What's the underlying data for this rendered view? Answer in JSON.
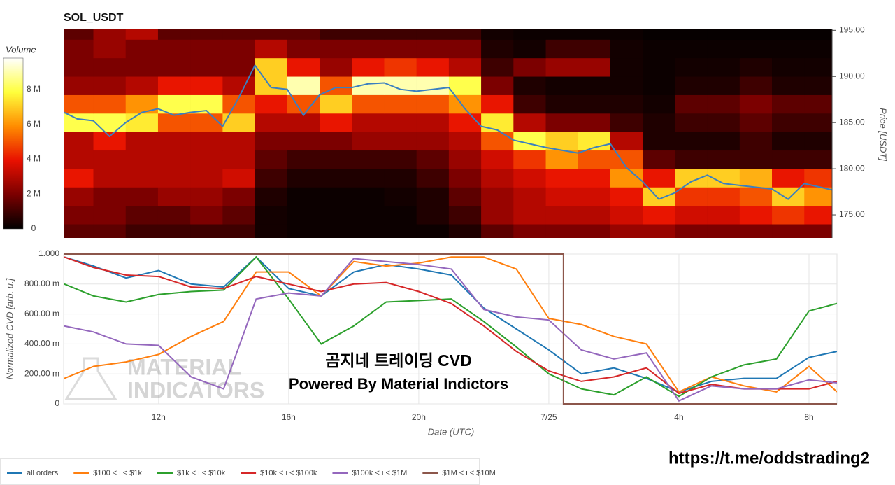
{
  "chart_data": [
    {
      "type": "heatmap",
      "title": "SOL_USDT",
      "y_label": "Price [USDT]",
      "xlim": [
        9.08,
        32.86
      ],
      "ylim": [
        172.5,
        195.1
      ],
      "yticks": [
        {
          "value": 175,
          "label": "175.00"
        },
        {
          "value": 180,
          "label": "180.00"
        },
        {
          "value": 185,
          "label": "185.00"
        },
        {
          "value": 190,
          "label": "190.00"
        },
        {
          "value": 195,
          "label": "195.00"
        }
      ],
      "xbins": [
        9,
        10,
        11,
        12,
        13,
        14,
        15,
        16,
        17,
        18,
        19,
        20,
        21,
        22,
        23,
        24,
        25,
        26,
        27,
        28,
        29,
        30,
        31,
        32,
        33
      ],
      "ybins": [
        172,
        174,
        176,
        178,
        180,
        182,
        184,
        186,
        188,
        190,
        192,
        194,
        196
      ],
      "z": [
        [
          1500000,
          1500000,
          1000000,
          1000000,
          1000000,
          1000000,
          300000,
          200000,
          200000,
          200000,
          200000,
          200000,
          500000,
          1500000,
          2000000,
          2000000,
          2000000,
          2500000,
          2500000,
          2000000,
          2000000,
          2000000,
          2000000,
          2000000
        ],
        [
          2000000,
          2000000,
          1500000,
          1500000,
          2000000,
          1500000,
          300000,
          200000,
          200000,
          200000,
          200000,
          500000,
          1000000,
          2500000,
          3000000,
          3000000,
          3000000,
          3500000,
          4000000,
          3500000,
          3500000,
          4000000,
          4500000,
          4000000
        ],
        [
          2500000,
          2000000,
          2000000,
          2500000,
          2500000,
          2000000,
          500000,
          200000,
          200000,
          200000,
          300000,
          500000,
          1500000,
          2500000,
          3000000,
          3500000,
          3500000,
          4000000,
          7000000,
          4500000,
          4500000,
          5000000,
          7000000,
          6000000
        ],
        [
          4000000,
          3000000,
          3000000,
          3000000,
          3000000,
          3500000,
          1000000,
          500000,
          500000,
          500000,
          500000,
          1000000,
          2000000,
          3000000,
          3500000,
          4000000,
          4000000,
          6000000,
          4000000,
          7000000,
          7000000,
          6500000,
          4000000,
          4500000
        ],
        [
          3000000,
          3000000,
          3000000,
          3000000,
          3000000,
          3000000,
          1500000,
          1000000,
          1000000,
          1000000,
          1000000,
          1500000,
          2500000,
          3500000,
          4500000,
          6000000,
          5000000,
          5000000,
          1500000,
          1000000,
          1000000,
          1000000,
          1000000,
          1000000
        ],
        [
          3000000,
          4000000,
          3000000,
          3000000,
          3000000,
          3000000,
          2000000,
          2000000,
          2000000,
          2500000,
          2500000,
          2500000,
          3000000,
          5000000,
          8000000,
          7000000,
          7500000,
          3000000,
          500000,
          500000,
          500000,
          1000000,
          500000,
          500000
        ],
        [
          8000000,
          8000000,
          7500000,
          5000000,
          5000000,
          7000000,
          3000000,
          3000000,
          4000000,
          3000000,
          3000000,
          3000000,
          4000000,
          7500000,
          3000000,
          2000000,
          2000000,
          1000000,
          500000,
          1000000,
          1000000,
          1500000,
          1000000,
          1000000
        ],
        [
          5000000,
          5000000,
          6000000,
          8000000,
          8000000,
          5000000,
          4000000,
          5000000,
          7000000,
          5000000,
          5000000,
          5000000,
          6000000,
          4000000,
          1000000,
          500000,
          500000,
          500000,
          300000,
          1500000,
          1500000,
          2000000,
          1500000,
          1500000
        ],
        [
          2500000,
          2500000,
          3000000,
          4000000,
          4000000,
          3000000,
          7000000,
          9000000,
          5000000,
          9000000,
          9000000,
          9000000,
          8000000,
          2000000,
          500000,
          300000,
          300000,
          300000,
          200000,
          500000,
          500000,
          1000000,
          500000,
          500000
        ],
        [
          2000000,
          2000000,
          2000000,
          2000000,
          2000000,
          2000000,
          7000000,
          4000000,
          2500000,
          4000000,
          4500000,
          4000000,
          3000000,
          1000000,
          2000000,
          2500000,
          2500000,
          300000,
          200000,
          300000,
          300000,
          500000,
          300000,
          300000
        ],
        [
          2000000,
          2500000,
          2000000,
          2000000,
          2000000,
          2000000,
          3000000,
          2000000,
          2000000,
          2000000,
          2000000,
          2000000,
          2000000,
          500000,
          300000,
          1000000,
          1000000,
          300000,
          200000,
          200000,
          200000,
          200000,
          200000,
          200000
        ],
        [
          1500000,
          2500000,
          3000000,
          1500000,
          1500000,
          1500000,
          1500000,
          1500000,
          1000000,
          1000000,
          1000000,
          1000000,
          1000000,
          300000,
          200000,
          200000,
          200000,
          200000,
          100000,
          100000,
          100000,
          100000,
          100000,
          100000
        ]
      ],
      "colorbar": {
        "title": "Volume",
        "lim": [
          0,
          9800000
        ],
        "ticks": [
          0,
          {
            "value": 2000000,
            "label": "2 M"
          },
          {
            "value": 4000000,
            "label": "4 M"
          },
          {
            "value": 6000000,
            "label": "6 M"
          },
          {
            "value": 8000000,
            "label": "8 M"
          }
        ],
        "colors": [
          "#000000",
          "#7a0000",
          "#e81000",
          "#ff8c00",
          "#ffff3c",
          "#ffffff"
        ]
      },
      "series": [
        {
          "type": "line",
          "color": "#3a7fc0",
          "x": [
            9.1,
            9.5,
            10,
            10.5,
            11,
            11.5,
            12,
            12.5,
            13,
            13.5,
            14,
            14.5,
            15,
            15.5,
            16,
            16.5,
            17,
            17.5,
            18,
            18.5,
            19,
            19.5,
            20,
            20.5,
            21,
            21.5,
            22,
            22.5,
            23,
            23.5,
            24,
            24.5,
            25,
            25.5,
            26,
            26.5,
            27,
            27.5,
            28,
            28.5,
            29,
            29.5,
            30,
            30.5,
            31,
            31.5,
            32,
            32.5,
            32.86
          ],
          "values": [
            186.1,
            185.4,
            185.2,
            183.5,
            185.0,
            186.1,
            186.5,
            185.8,
            186.1,
            186.3,
            184.6,
            187.7,
            191.2,
            188.8,
            188.6,
            185.8,
            188.0,
            188.8,
            188.8,
            189.2,
            189.3,
            188.6,
            188.4,
            188.6,
            188.8,
            186.5,
            184.6,
            184.2,
            183.1,
            182.7,
            182.3,
            182.0,
            181.7,
            182.3,
            182.7,
            180.1,
            178.6,
            176.7,
            177.4,
            178.6,
            179.3,
            178.4,
            178.2,
            178.0,
            177.8,
            176.7,
            178.4,
            178.0,
            177.7
          ]
        }
      ]
    },
    {
      "type": "line",
      "y_label": "Normalized CVD [arb. u.]",
      "x_label": "Date (UTC)",
      "xlim": [
        9.08,
        32.86
      ],
      "ylim": [
        0,
        1
      ],
      "xticks": [
        {
          "value": 12,
          "label": "12h"
        },
        {
          "value": 16,
          "label": "16h"
        },
        {
          "value": 20,
          "label": "20h"
        },
        {
          "value": 24,
          "label": "7/25"
        },
        {
          "value": 28,
          "label": "4h"
        },
        {
          "value": 32,
          "label": "8h"
        }
      ],
      "yticks": [
        0,
        {
          "value": 0.2,
          "label": "200.00 m"
        },
        {
          "value": 0.4,
          "label": "400.00 m"
        },
        {
          "value": 0.6,
          "label": "600.00 m"
        },
        {
          "value": 0.8,
          "label": "800.00 m"
        },
        {
          "value": 1,
          "label": "1.000"
        }
      ],
      "grid": true,
      "legend": "bottom-left",
      "x": [
        9.1,
        10,
        11,
        12,
        13,
        14,
        15,
        16,
        17,
        18,
        19,
        20,
        21,
        22,
        23,
        24,
        25,
        26,
        27,
        28,
        29,
        30,
        31,
        32,
        32.86
      ],
      "series": [
        {
          "name": "all orders",
          "color": "#1f77b4",
          "values": [
            0.98,
            0.92,
            0.84,
            0.89,
            0.8,
            0.78,
            0.98,
            0.77,
            0.72,
            0.88,
            0.93,
            0.9,
            0.86,
            0.64,
            0.5,
            0.36,
            0.2,
            0.24,
            0.17,
            0.08,
            0.15,
            0.17,
            0.17,
            0.31,
            0.35
          ]
        },
        {
          "name": "$100 < i < $1k",
          "color": "#ff7f0e",
          "values": [
            0.17,
            0.25,
            0.28,
            0.33,
            0.45,
            0.55,
            0.88,
            0.88,
            0.72,
            0.95,
            0.92,
            0.94,
            0.98,
            0.98,
            0.9,
            0.57,
            0.53,
            0.45,
            0.4,
            0.08,
            0.18,
            0.12,
            0.08,
            0.25,
            0.08
          ]
        },
        {
          "name": "$1k < i < $10k",
          "color": "#2ca02c",
          "values": [
            0.8,
            0.72,
            0.68,
            0.73,
            0.75,
            0.76,
            0.98,
            0.7,
            0.4,
            0.52,
            0.68,
            0.69,
            0.7,
            0.55,
            0.38,
            0.2,
            0.1,
            0.06,
            0.18,
            0.05,
            0.18,
            0.26,
            0.3,
            0.62,
            0.67
          ]
        },
        {
          "name": "$10k < i < $100k",
          "color": "#d62728",
          "values": [
            0.98,
            0.91,
            0.86,
            0.85,
            0.78,
            0.77,
            0.85,
            0.8,
            0.75,
            0.8,
            0.81,
            0.75,
            0.67,
            0.52,
            0.35,
            0.22,
            0.15,
            0.18,
            0.24,
            0.07,
            0.13,
            0.1,
            0.1,
            0.1,
            0.15
          ]
        },
        {
          "name": "$100k < i < $1M",
          "color": "#9467bd",
          "values": [
            0.52,
            0.48,
            0.4,
            0.39,
            0.18,
            0.1,
            0.7,
            0.74,
            0.72,
            0.97,
            0.95,
            0.93,
            0.9,
            0.63,
            0.58,
            0.56,
            0.36,
            0.3,
            0.34,
            0.02,
            0.12,
            0.1,
            0.1,
            0.16,
            0.14
          ]
        },
        {
          "name": "$1M < i < $10M",
          "color": "#8c564b",
          "x": [
            9.1,
            24.45,
            24.45,
            32.86
          ],
          "values": [
            1,
            1,
            0,
            0
          ]
        }
      ]
    }
  ],
  "overlay": {
    "caption": "곰지네 트레이딩 CVD",
    "subcaption": "Powered By Material Indictors",
    "watermark": [
      "MATERIAL",
      "INDICATORS"
    ],
    "link": "https://t.me/oddstrading2"
  }
}
